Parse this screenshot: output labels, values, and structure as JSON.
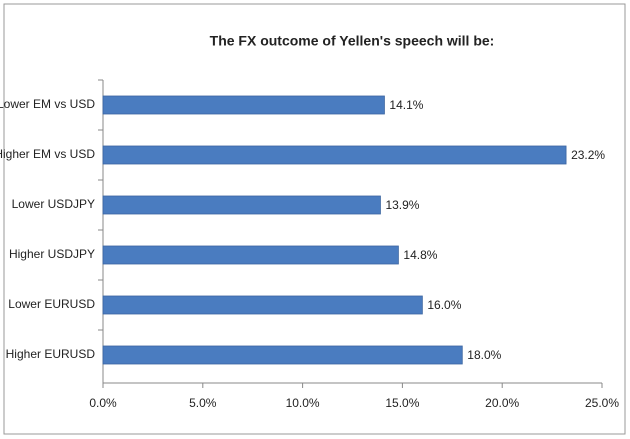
{
  "chart_data": {
    "type": "bar",
    "orientation": "horizontal",
    "title": "The FX outcome of Yellen's speech will be:",
    "categories": [
      "Lower EM vs USD",
      "Higher EM vs USD",
      "Lower USDJPY",
      "Higher USDJPY",
      "Lower EURUSD",
      "Higher EURUSD"
    ],
    "values": [
      14.1,
      23.2,
      13.9,
      14.8,
      16.0,
      18.0
    ],
    "value_labels": [
      "14.1%",
      "23.2%",
      "13.9%",
      "14.8%",
      "16.0%",
      "18.0%"
    ],
    "color": "#4a7cc0",
    "xlim": [
      0,
      25
    ],
    "xticks": [
      {
        "value": 0,
        "label": "0.0%"
      },
      {
        "value": 5,
        "label": "5.0%"
      },
      {
        "value": 10,
        "label": "10.0%"
      },
      {
        "value": 15,
        "label": "15.0%"
      },
      {
        "value": 20,
        "label": "20.0%"
      },
      {
        "value": 25,
        "label": "25.0%"
      }
    ],
    "grid": false
  }
}
